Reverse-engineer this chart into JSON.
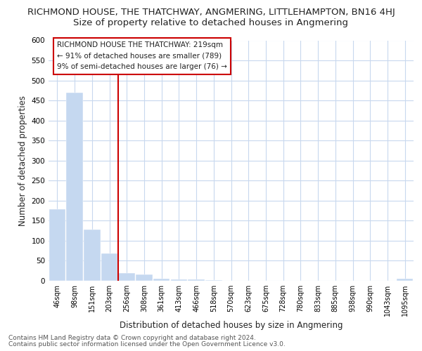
{
  "title_line1": "RICHMOND HOUSE, THE THATCHWAY, ANGMERING, LITTLEHAMPTON, BN16 4HJ",
  "title_line2": "Size of property relative to detached houses in Angmering",
  "xlabel": "Distribution of detached houses by size in Angmering",
  "ylabel": "Number of detached properties",
  "bar_labels": [
    "46sqm",
    "98sqm",
    "151sqm",
    "203sqm",
    "256sqm",
    "308sqm",
    "361sqm",
    "413sqm",
    "466sqm",
    "518sqm",
    "570sqm",
    "623sqm",
    "675sqm",
    "728sqm",
    "780sqm",
    "833sqm",
    "885sqm",
    "938sqm",
    "990sqm",
    "1043sqm",
    "1095sqm"
  ],
  "bar_values": [
    178,
    469,
    128,
    68,
    20,
    15,
    5,
    3,
    3,
    2,
    0,
    0,
    0,
    0,
    0,
    0,
    0,
    0,
    0,
    0,
    5
  ],
  "bar_color": "#c5d8f0",
  "red_line_x": 3.5,
  "annotation_line1": "RICHMOND HOUSE THE THATCHWAY: 219sqm",
  "annotation_line2": "← 91% of detached houses are smaller (789)",
  "annotation_line3": "9% of semi-detached houses are larger (76) →",
  "ylim_max": 600,
  "yticks": [
    0,
    50,
    100,
    150,
    200,
    250,
    300,
    350,
    400,
    450,
    500,
    550,
    600
  ],
  "bg_color": "#ffffff",
  "grid_color": "#c8d8ee",
  "title1_fontsize": 9.5,
  "title2_fontsize": 9.5,
  "footer_line1": "Contains HM Land Registry data © Crown copyright and database right 2024.",
  "footer_line2": "Contains public sector information licensed under the Open Government Licence v3.0."
}
